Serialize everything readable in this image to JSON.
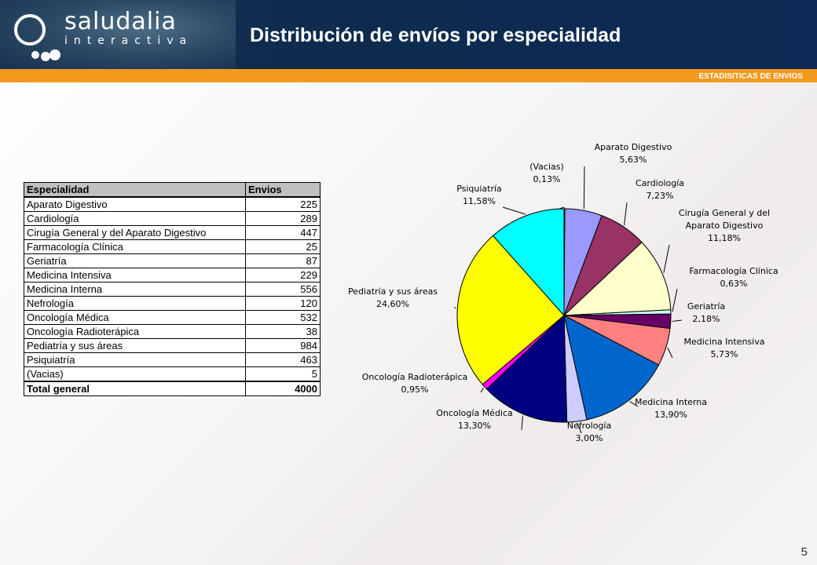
{
  "header": {
    "logo_main": "saludalia",
    "logo_sub": "interactiva",
    "title": "Distribución de envíos por especialidad",
    "section_label": "ESTADISITICAS DE ENVIOS"
  },
  "page_number": "5",
  "table": {
    "col_especialidad": "Especialidad",
    "col_envios": "Envios",
    "rows": [
      {
        "name": "Aparato Digestivo",
        "value": "225"
      },
      {
        "name": "Cardiología",
        "value": "289"
      },
      {
        "name": "Cirugía General y del Aparato Digestivo",
        "value": "447"
      },
      {
        "name": "Farmacología Clínica",
        "value": "25"
      },
      {
        "name": "Geriatría",
        "value": "87"
      },
      {
        "name": "Medicina Intensiva",
        "value": "229"
      },
      {
        "name": "Medicina Interna",
        "value": "556"
      },
      {
        "name": "Nefrología",
        "value": "120"
      },
      {
        "name": "Oncología Médica",
        "value": "532"
      },
      {
        "name": "Oncología Radioterápica",
        "value": "38"
      },
      {
        "name": "Pediatría y sus áreas",
        "value": "984"
      },
      {
        "name": "Psiquiatría",
        "value": "463"
      },
      {
        "name": "(Vacias)",
        "value": "5"
      }
    ],
    "total_label": "Total general",
    "total_value": "4000"
  },
  "chart_data": {
    "type": "pie",
    "title": "",
    "slices": [
      {
        "label": "(Vacias)",
        "pct_text": "0,13%",
        "value": 5,
        "color": "#1a1a1a"
      },
      {
        "label": "Aparato Digestivo",
        "pct_text": "5,63%",
        "value": 225,
        "color": "#9999ff"
      },
      {
        "label": "Cardiología",
        "pct_text": "7,23%",
        "value": 289,
        "color": "#993366"
      },
      {
        "label": "Cirugía General y del Aparato Digestivo",
        "pct_text": "11,18%",
        "value": 447,
        "color": "#ffffcc"
      },
      {
        "label": "Farmacología Clínica",
        "pct_text": "0,63%",
        "value": 25,
        "color": "#ccffff"
      },
      {
        "label": "Geriatría",
        "pct_text": "2,18%",
        "value": 87,
        "color": "#660066"
      },
      {
        "label": "Medicina Intensiva",
        "pct_text": "5,73%",
        "value": 229,
        "color": "#ff8080"
      },
      {
        "label": "Medicina Interna",
        "pct_text": "13,90%",
        "value": 556,
        "color": "#0066cc"
      },
      {
        "label": "Nefrología",
        "pct_text": "3,00%",
        "value": 120,
        "color": "#ccccff"
      },
      {
        "label": "Oncología Médica",
        "pct_text": "13,30%",
        "value": 532,
        "color": "#000080"
      },
      {
        "label": "Oncología Radioterápica",
        "pct_text": "0,95%",
        "value": 38,
        "color": "#ff00ff"
      },
      {
        "label": "Pediatría y sus áreas",
        "pct_text": "24,60%",
        "value": 984,
        "color": "#ffff00"
      },
      {
        "label": "Psiquiatría",
        "pct_text": "11,58%",
        "value": 463,
        "color": "#00ffff"
      }
    ]
  }
}
